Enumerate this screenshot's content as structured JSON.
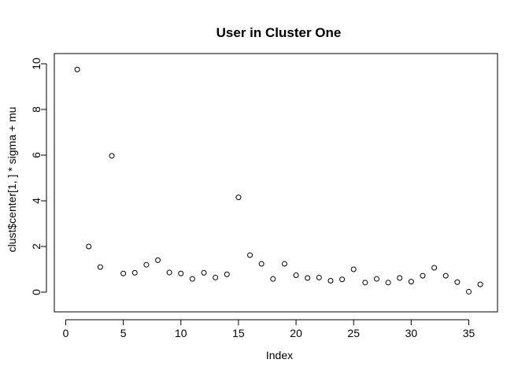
{
  "chart_data": {
    "type": "scatter",
    "title": "User in Cluster One",
    "xlabel": "Index",
    "ylabel": "clust$center[1, ] * sigma + mu",
    "xlim": [
      0,
      37
    ],
    "ylim": [
      0,
      10
    ],
    "x_ticks": [
      0,
      5,
      10,
      15,
      20,
      25,
      30,
      35
    ],
    "y_ticks": [
      0,
      2,
      4,
      6,
      8,
      10
    ],
    "grid": false,
    "legend": "none",
    "point_style": "open-circle",
    "x": [
      1,
      2,
      3,
      4,
      5,
      6,
      7,
      8,
      9,
      10,
      11,
      12,
      13,
      14,
      15,
      16,
      17,
      18,
      19,
      20,
      21,
      22,
      23,
      24,
      25,
      26,
      27,
      28,
      29,
      30,
      31,
      32,
      33,
      34,
      35,
      36
    ],
    "y": [
      9.75,
      2.0,
      1.1,
      5.97,
      0.82,
      0.85,
      1.2,
      1.4,
      0.86,
      0.82,
      0.58,
      0.85,
      0.64,
      0.78,
      4.15,
      1.62,
      1.24,
      0.58,
      1.24,
      0.74,
      0.62,
      0.64,
      0.5,
      0.56,
      1.0,
      0.42,
      0.58,
      0.42,
      0.62,
      0.46,
      0.72,
      1.07,
      0.72,
      0.44,
      0.02,
      0.34
    ]
  }
}
